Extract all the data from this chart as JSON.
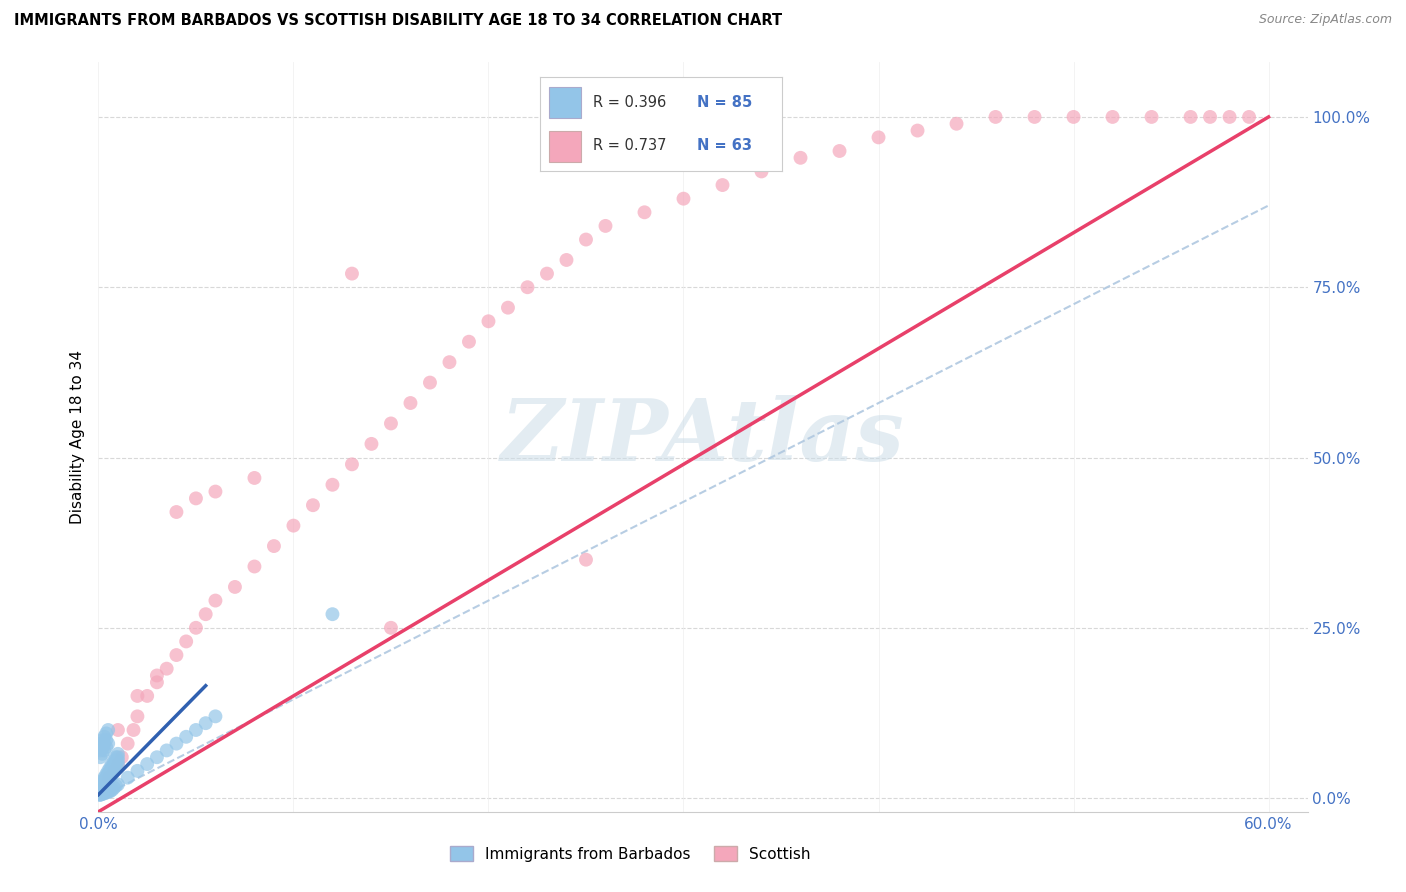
{
  "title": "IMMIGRANTS FROM BARBADOS VS SCOTTISH DISABILITY AGE 18 TO 34 CORRELATION CHART",
  "source": "Source: ZipAtlas.com",
  "ylabel": "Disability Age 18 to 34",
  "legend_label1": "Immigrants from Barbados",
  "legend_label2": "Scottish",
  "R1": 0.396,
  "N1": 85,
  "R2": 0.737,
  "N2": 63,
  "xlim": [
    0.0,
    0.62
  ],
  "ylim": [
    -0.02,
    1.08
  ],
  "xtick_positions": [
    0.0,
    0.1,
    0.2,
    0.3,
    0.4,
    0.5,
    0.6
  ],
  "xtick_labels": [
    "0.0%",
    "",
    "",
    "",
    "",
    "",
    "60.0%"
  ],
  "ytick_positions": [
    0.0,
    0.25,
    0.5,
    0.75,
    1.0
  ],
  "ytick_labels": [
    "0.0%",
    "25.0%",
    "50.0%",
    "75.0%",
    "100.0%"
  ],
  "color_blue": "#93c5e8",
  "color_pink": "#f4a7bb",
  "color_blue_line": "#3060b0",
  "color_pink_line": "#e8406a",
  "color_dashed": "#b0c8e0",
  "watermark": "ZIPAtlas",
  "watermark_color": "#ccdde8",
  "blue_x": [
    0.0005,
    0.001,
    0.0015,
    0.002,
    0.0025,
    0.003,
    0.0035,
    0.004,
    0.0045,
    0.005,
    0.001,
    0.002,
    0.003,
    0.004,
    0.005,
    0.006,
    0.007,
    0.008,
    0.009,
    0.01,
    0.001,
    0.002,
    0.003,
    0.004,
    0.005,
    0.006,
    0.007,
    0.008,
    0.009,
    0.01,
    0.001,
    0.002,
    0.003,
    0.004,
    0.005,
    0.006,
    0.007,
    0.008,
    0.009,
    0.01,
    0.001,
    0.002,
    0.003,
    0.004,
    0.005,
    0.001,
    0.002,
    0.003,
    0.004,
    0.005,
    0.001,
    0.002,
    0.003,
    0.004,
    0.005,
    0.006,
    0.007,
    0.008,
    0.009,
    0.01,
    0.015,
    0.02,
    0.025,
    0.03,
    0.035,
    0.04,
    0.045,
    0.05,
    0.055,
    0.06,
    0.001,
    0.002,
    0.003,
    0.004,
    0.005,
    0.006,
    0.007,
    0.008,
    0.009,
    0.01,
    0.001,
    0.002,
    0.003,
    0.004,
    0.12
  ],
  "blue_y": [
    0.005,
    0.008,
    0.01,
    0.012,
    0.015,
    0.018,
    0.02,
    0.025,
    0.03,
    0.035,
    0.015,
    0.02,
    0.025,
    0.03,
    0.035,
    0.04,
    0.045,
    0.05,
    0.055,
    0.06,
    0.005,
    0.01,
    0.015,
    0.02,
    0.025,
    0.03,
    0.035,
    0.04,
    0.045,
    0.05,
    0.01,
    0.015,
    0.02,
    0.025,
    0.03,
    0.035,
    0.04,
    0.045,
    0.05,
    0.055,
    0.06,
    0.065,
    0.07,
    0.075,
    0.08,
    0.08,
    0.085,
    0.09,
    0.095,
    0.1,
    0.005,
    0.006,
    0.007,
    0.008,
    0.009,
    0.01,
    0.012,
    0.015,
    0.018,
    0.02,
    0.03,
    0.04,
    0.05,
    0.06,
    0.07,
    0.08,
    0.09,
    0.1,
    0.11,
    0.12,
    0.02,
    0.025,
    0.03,
    0.035,
    0.04,
    0.045,
    0.05,
    0.055,
    0.06,
    0.065,
    0.07,
    0.075,
    0.08,
    0.085,
    0.27
  ],
  "pink_x": [
    0.005,
    0.008,
    0.01,
    0.012,
    0.015,
    0.018,
    0.02,
    0.025,
    0.03,
    0.035,
    0.04,
    0.045,
    0.05,
    0.055,
    0.06,
    0.07,
    0.08,
    0.09,
    0.1,
    0.11,
    0.12,
    0.13,
    0.14,
    0.15,
    0.16,
    0.17,
    0.18,
    0.19,
    0.2,
    0.21,
    0.22,
    0.23,
    0.24,
    0.25,
    0.26,
    0.28,
    0.3,
    0.32,
    0.34,
    0.36,
    0.38,
    0.4,
    0.42,
    0.44,
    0.46,
    0.48,
    0.5,
    0.52,
    0.54,
    0.56,
    0.57,
    0.58,
    0.59,
    0.01,
    0.02,
    0.03,
    0.04,
    0.05,
    0.06,
    0.08,
    0.13,
    0.15,
    0.25
  ],
  "pink_y": [
    0.03,
    0.04,
    0.05,
    0.06,
    0.08,
    0.1,
    0.12,
    0.15,
    0.17,
    0.19,
    0.21,
    0.23,
    0.25,
    0.27,
    0.29,
    0.31,
    0.34,
    0.37,
    0.4,
    0.43,
    0.46,
    0.49,
    0.52,
    0.55,
    0.58,
    0.61,
    0.64,
    0.67,
    0.7,
    0.72,
    0.75,
    0.77,
    0.79,
    0.82,
    0.84,
    0.86,
    0.88,
    0.9,
    0.92,
    0.94,
    0.95,
    0.97,
    0.98,
    0.99,
    1.0,
    1.0,
    1.0,
    1.0,
    1.0,
    1.0,
    1.0,
    1.0,
    1.0,
    0.1,
    0.15,
    0.18,
    0.42,
    0.44,
    0.45,
    0.47,
    0.77,
    0.25,
    0.35
  ],
  "pink_line_x0": 0.0,
  "pink_line_y0": -0.02,
  "pink_line_x1": 0.6,
  "pink_line_y1": 1.0,
  "blue_line_x0": 0.0,
  "blue_line_y0": 0.005,
  "blue_line_x1": 0.055,
  "blue_line_y1": 0.165,
  "dash_line_x0": 0.0,
  "dash_line_y0": 0.0,
  "dash_line_x1": 0.6,
  "dash_line_y1": 0.87
}
